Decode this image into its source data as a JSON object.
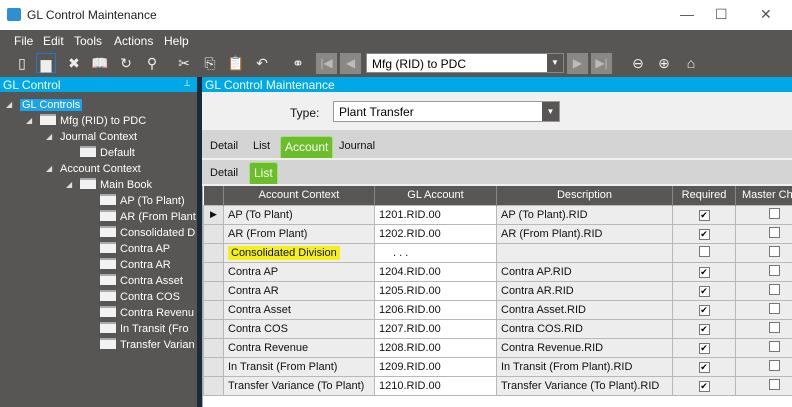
{
  "window": {
    "title": "GL Control Maintenance",
    "minimize": "—",
    "maximize": "☐",
    "close": "✕"
  },
  "menu": [
    "File",
    "Edit",
    "Tools",
    "Actions",
    "Help"
  ],
  "toolbar": {
    "icons": [
      "new-icon",
      "save-icon",
      "delete-icon",
      "book-icon",
      "refresh-icon",
      "clear-icon",
      "cut-icon",
      "copy-icon",
      "paste-icon",
      "undo-icon",
      "search-icon"
    ],
    "combo_value": "Mfg (RID) to PDC"
  },
  "left_panel": {
    "title": "GL Control",
    "pin": "📌",
    "tree": [
      {
        "label": "GL Controls",
        "level": 0,
        "expanded": true,
        "folder": false,
        "selected": true
      },
      {
        "label": "Mfg (RID) to PDC",
        "level": 1,
        "expanded": true,
        "folder": true
      },
      {
        "label": "Journal Context",
        "level": 2,
        "expanded": true,
        "folder": false
      },
      {
        "label": "Default",
        "level": 3,
        "folder": true
      },
      {
        "label": "Account Context",
        "level": 2,
        "expanded": true,
        "folder": false
      },
      {
        "label": "Main Book",
        "level": 3,
        "expanded": true,
        "folder": true
      },
      {
        "label": "AP (To Plant)",
        "level": 4,
        "folder": true
      },
      {
        "label": "AR (From Plant",
        "level": 4,
        "folder": true
      },
      {
        "label": "Consolidated D",
        "level": 4,
        "folder": true
      },
      {
        "label": "Contra AP",
        "level": 4,
        "folder": true
      },
      {
        "label": "Contra AR",
        "level": 4,
        "folder": true
      },
      {
        "label": "Contra Asset",
        "level": 4,
        "folder": true
      },
      {
        "label": "Contra COS",
        "level": 4,
        "folder": true
      },
      {
        "label": "Contra Revenu",
        "level": 4,
        "folder": true
      },
      {
        "label": "In Transit (Fro",
        "level": 4,
        "folder": true
      },
      {
        "label": "Transfer Varian",
        "level": 4,
        "folder": true
      }
    ]
  },
  "right_panel": {
    "title": "GL Control Maintenance",
    "type_label": "Type:",
    "type_value": "Plant Transfer",
    "tabs": [
      {
        "label": "Detail"
      },
      {
        "label": "List"
      },
      {
        "label": "Account",
        "active": true
      },
      {
        "label": "Journal"
      }
    ],
    "subtabs": [
      {
        "label": "Detail"
      },
      {
        "label": "List",
        "active": true
      }
    ],
    "grid": {
      "columns": [
        "Account Context",
        "GL Account",
        "Description",
        "Required",
        "Master Ch"
      ],
      "rows": [
        {
          "context": "AP (To Plant)",
          "account": "1201.RID.00",
          "description": "AP (To Plant).RID",
          "required": true,
          "master": false,
          "current": true
        },
        {
          "context": "AR (From Plant)",
          "account": "1202.RID.00",
          "description": "AR (From Plant).RID",
          "required": true,
          "master": false
        },
        {
          "context": "Consolidated Division",
          "account": ". . .",
          "description": "",
          "required": false,
          "master": false,
          "highlight": true
        },
        {
          "context": "Contra AP",
          "account": "1204.RID.00",
          "description": "Contra AP.RID",
          "required": true,
          "master": false
        },
        {
          "context": "Contra AR",
          "account": "1205.RID.00",
          "description": "Contra AR.RID",
          "required": true,
          "master": false
        },
        {
          "context": "Contra Asset",
          "account": "1206.RID.00",
          "description": "Contra Asset.RID",
          "required": true,
          "master": false
        },
        {
          "context": "Contra COS",
          "account": "1207.RID.00",
          "description": "Contra COS.RID",
          "required": true,
          "master": false
        },
        {
          "context": "Contra Revenue",
          "account": "1208.RID.00",
          "description": "Contra Revenue.RID",
          "required": true,
          "master": false
        },
        {
          "context": "In Transit (From Plant)",
          "account": "1209.RID.00",
          "description": "In Transit (From Plant).RID",
          "required": true,
          "master": false
        },
        {
          "context": "Transfer Variance (To Plant)",
          "account": "1210.RID.00",
          "description": "Transfer Variance (To Plant).RID",
          "required": true,
          "master": false
        }
      ]
    }
  },
  "colors": {
    "accent": "#00a8e8",
    "tab_active": "#6cbd2a",
    "chrome": "#585654",
    "highlight": "#f3f01e"
  }
}
